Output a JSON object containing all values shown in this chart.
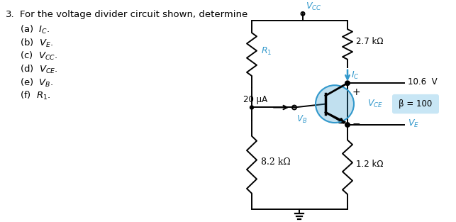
{
  "title_num": "3.",
  "title_text": "For the voltage divider circuit shown, determine",
  "items": [
    "(a)  $I_C$.",
    "(b)  $V_E$.",
    "(c)  $V_{CC}$.",
    "(d)  $V_{CE}$.",
    "(e)  $V_B$.",
    "(f)  $R_1$."
  ],
  "bg_color": "#ffffff",
  "cc": "#000000",
  "bc": "#3399CC",
  "beta_box_bg": "#C8E6F5",
  "vcc_label": "$V_{CC}$",
  "r1_label": "$R_1$",
  "rc_label": "2.7 kΩ",
  "re_label": "1.2 kΩ",
  "r2_label": "8.2 kΩ",
  "ib_label": "20 μA",
  "ic_label": "$I_C$",
  "vce_label": "$V_{CE}$",
  "vb_label": "$V_B$",
  "ve_label": "$V_E$",
  "vcc_val": "10.6  V",
  "beta_val": "β = 100"
}
